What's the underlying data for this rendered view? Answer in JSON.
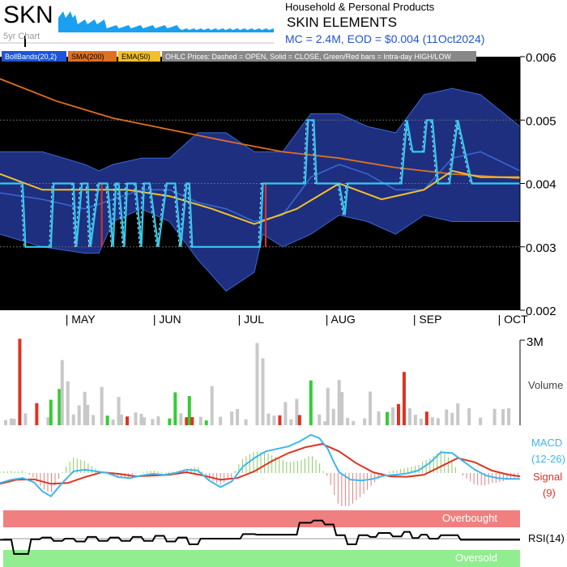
{
  "header": {
    "ticker": "SKN",
    "spark_label": "5yr Chart",
    "sector": "Household & Personal Products",
    "company": "SKIN ELEMENTS",
    "mc_line": "MC = 2.4M, EOD = $0.004 (11Oct2024)"
  },
  "colors": {
    "price_bg": "#000000",
    "band_fill": "#1e2f80",
    "band_line": "#3a66d0",
    "sma": "#e07020",
    "ema": "#f2c02a",
    "close": "#33ccee",
    "volume_up": "#33cc33",
    "volume_down": "#dd3322",
    "volume_flat": "#c8c8c8",
    "macd": "#3fb6ee",
    "signal": "#dd3322",
    "overbought": "#f08080",
    "oversold": "#90ee90"
  },
  "chart_data": [
    {
      "type": "line",
      "legend": [
        "BollBands(20,2)",
        "SMA(200)",
        "EMA(50)",
        "OHLC Prices: Dashed = OPEN, Solid = CLOSE, Green/Red bars = Intra-day HIGH/LOW"
      ],
      "ylim": [
        0.002,
        0.006
      ],
      "yticks": [
        "0.006",
        "0.005",
        "0.004",
        "0.003",
        "0.002"
      ],
      "xticks": [
        "| MAY",
        "| JUN",
        "| JUL",
        "| AUG",
        "| SEP",
        "| OCT"
      ],
      "xtick_days": [
        24,
        55,
        85,
        116,
        147,
        177
      ],
      "x_range_days": [
        0,
        184
      ],
      "series": {
        "close": {
          "x": [
            0,
            8,
            9,
            18,
            19,
            26,
            27,
            29,
            31,
            32,
            35,
            38,
            40,
            41,
            42,
            44,
            45,
            48,
            50,
            51,
            53,
            56,
            59,
            62,
            64,
            66,
            67,
            68,
            70,
            85,
            92,
            93,
            95,
            108,
            109,
            111,
            112,
            120,
            122,
            123,
            126,
            129,
            130,
            131,
            133,
            142,
            144,
            146,
            150,
            151,
            153,
            155,
            159,
            162,
            167,
            184
          ],
          "y": [
            0.004,
            0.004,
            0.003,
            0.003,
            0.004,
            0.004,
            0.003,
            0.004,
            0.004,
            0.003,
            0.004,
            0.004,
            0.003,
            0.004,
            0.004,
            0.003,
            0.004,
            0.004,
            0.003,
            0.004,
            0.004,
            0.003,
            0.004,
            0.004,
            0.003,
            0.004,
            0.004,
            0.003,
            0.003,
            0.003,
            0.003,
            0.004,
            0.004,
            0.004,
            0.005,
            0.005,
            0.004,
            0.004,
            0.0035,
            0.004,
            0.004,
            0.004,
            0.004,
            0.004,
            0.004,
            0.004,
            0.005,
            0.0045,
            0.0045,
            0.005,
            0.005,
            0.004,
            0.004,
            0.005,
            0.004,
            0.004
          ]
        },
        "sma200": {
          "x": [
            0,
            20,
            40,
            60,
            80,
            100,
            120,
            140,
            160,
            184
          ],
          "y": [
            0.00565,
            0.0053,
            0.00503,
            0.00485,
            0.00467,
            0.0045,
            0.0044,
            0.00425,
            0.00415,
            0.00408
          ]
        },
        "ema50": {
          "x": [
            0,
            15,
            30,
            45,
            60,
            75,
            90,
            105,
            120,
            135,
            150,
            160,
            170,
            184
          ],
          "y": [
            0.00415,
            0.0039,
            0.0039,
            0.0039,
            0.0038,
            0.0036,
            0.00336,
            0.0036,
            0.004,
            0.00375,
            0.0039,
            0.0042,
            0.0041,
            0.0041
          ]
        },
        "bb_upper": {
          "x": [
            0,
            15,
            30,
            35,
            40,
            50,
            60,
            70,
            80,
            90,
            100,
            110,
            120,
            130,
            140,
            150,
            160,
            170,
            184
          ],
          "y": [
            0.0045,
            0.0045,
            0.0043,
            0.0042,
            0.0043,
            0.0044,
            0.0044,
            0.0048,
            0.0048,
            0.0045,
            0.0045,
            0.0051,
            0.0051,
            0.0049,
            0.0048,
            0.0054,
            0.0055,
            0.0054,
            0.0049
          ]
        },
        "bb_mid": {
          "x": [
            0,
            15,
            30,
            40,
            50,
            60,
            70,
            80,
            90,
            100,
            110,
            120,
            130,
            140,
            150,
            160,
            170,
            184
          ],
          "y": [
            0.00385,
            0.00375,
            0.0036,
            0.00375,
            0.0039,
            0.0039,
            0.0037,
            0.0036,
            0.0034,
            0.0035,
            0.0041,
            0.0043,
            0.00415,
            0.0039,
            0.0039,
            0.0044,
            0.0045,
            0.0042
          ],
          "style": "mid"
        },
        "bb_lower": {
          "x": [
            0,
            15,
            30,
            35,
            40,
            50,
            60,
            70,
            80,
            90,
            93,
            100,
            110,
            120,
            130,
            140,
            150,
            160,
            170,
            184
          ],
          "y": [
            0.0032,
            0.003,
            0.0029,
            0.0029,
            0.0034,
            0.0036,
            0.0034,
            0.0028,
            0.0023,
            0.0026,
            0.0032,
            0.003,
            0.0032,
            0.0035,
            0.0034,
            0.0032,
            0.0035,
            0.0034,
            0.0034,
            0.0034
          ]
        }
      },
      "red_bars": [
        {
          "x": 36,
          "low": 0.003,
          "high": 0.004
        },
        {
          "x": 94,
          "low": 0.003,
          "high": 0.004
        }
      ]
    },
    {
      "type": "bar",
      "ylabel": "Volume",
      "ylim": [
        0,
        3000000
      ],
      "ytick": "3M",
      "x": [
        2,
        4,
        5,
        7,
        9,
        13,
        17,
        18,
        21,
        22,
        24,
        26,
        28,
        30,
        31,
        33,
        36,
        38,
        40,
        42,
        43,
        45,
        48,
        50,
        51,
        54,
        56,
        60,
        62,
        64,
        66,
        67,
        68,
        71,
        73,
        75,
        78,
        82,
        84,
        87,
        91,
        93,
        95,
        97,
        99,
        101,
        103,
        105,
        106,
        110,
        113,
        115,
        116,
        118,
        120,
        121,
        123,
        125,
        129,
        131,
        134,
        137,
        139,
        141,
        143,
        145,
        147,
        149,
        151,
        153,
        155,
        158,
        160,
        162,
        166,
        170,
        175,
        178,
        180
      ],
      "values": [
        180000,
        240000,
        230000,
        3050000,
        420000,
        780000,
        280000,
        900000,
        1280000,
        2300000,
        1550000,
        380000,
        700000,
        1180000,
        720000,
        360000,
        1350000,
        340000,
        200000,
        1000000,
        380000,
        310000,
        450000,
        400000,
        280000,
        220000,
        320000,
        240000,
        1160000,
        420000,
        280000,
        1030000,
        290000,
        300000,
        170000,
        1380000,
        300000,
        480000,
        570000,
        210000,
        2900000,
        2360000,
        410000,
        340000,
        350000,
        820000,
        210000,
        930000,
        360000,
        1580000,
        380000,
        140000,
        1320000,
        580000,
        1600000,
        1170000,
        260000,
        150000,
        240000,
        1190000,
        490000,
        470000,
        630000,
        750000,
        1880000,
        600000,
        370000,
        230000,
        480000,
        280000,
        250000,
        560000,
        440000,
        770000,
        600000,
        270000,
        580000,
        570000,
        600000
      ],
      "colors": [
        "flat",
        "flat",
        "flat",
        "down",
        "flat",
        "down",
        "flat",
        "up",
        "up",
        "flat",
        "flat",
        "flat",
        "flat",
        "flat",
        "flat",
        "flat",
        "flat",
        "up",
        "flat",
        "flat",
        "flat",
        "down",
        "flat",
        "flat",
        "flat",
        "flat",
        "flat",
        "up",
        "up",
        "flat",
        "down",
        "up",
        "down",
        "flat",
        "up",
        "flat",
        "flat",
        "flat",
        "flat",
        "flat",
        "flat",
        "flat",
        "flat",
        "flat",
        "down",
        "flat",
        "flat",
        "flat",
        "down",
        "up",
        "flat",
        "flat",
        "flat",
        "flat",
        "flat",
        "flat",
        "flat",
        "flat",
        "flat",
        "flat",
        "flat",
        "up",
        "flat",
        "down",
        "down",
        "flat",
        "flat",
        "flat",
        "down",
        "flat",
        "flat",
        "flat",
        "flat",
        "flat",
        "flat",
        "flat",
        "flat",
        "flat",
        "flat"
      ]
    },
    {
      "type": "line",
      "labels": [
        "MACD",
        "(12-26)",
        "Signal",
        "(9)"
      ],
      "x_range_days": [
        0,
        184
      ],
      "series": {
        "macd": {
          "x": [
            0,
            4,
            8,
            12,
            15,
            18,
            22,
            26,
            30,
            34,
            38,
            42,
            46,
            50,
            54,
            58,
            62,
            66,
            70,
            74,
            78,
            82,
            86,
            90,
            94,
            98,
            102,
            106,
            110,
            113,
            116,
            118,
            120,
            124,
            128,
            132,
            136,
            140,
            144,
            148,
            152,
            156,
            160,
            164,
            168,
            172,
            176,
            180,
            184
          ],
          "y": [
            -2.4,
            -1.6,
            -1.2,
            -2.2,
            -4.4,
            -5.6,
            -2.4,
            0.4,
            0.8,
            0.4,
            0.0,
            -1.0,
            -1.2,
            -0.6,
            -0.2,
            -0.4,
            0.0,
            0.8,
            0.6,
            -1.8,
            -3.4,
            -2.0,
            1.6,
            3.6,
            5.2,
            5.8,
            6.4,
            7.6,
            9.2,
            8.4,
            5.8,
            2.8,
            0.2,
            -1.6,
            -1.8,
            -1.4,
            -0.6,
            -0.4,
            -0.1,
            0.6,
            2.4,
            5.0,
            4.8,
            2.8,
            0.8,
            -0.6,
            -1.2,
            -1.4,
            -1.4
          ]
        },
        "signal": {
          "x": [
            0,
            6,
            12,
            18,
            24,
            30,
            36,
            42,
            48,
            54,
            60,
            66,
            72,
            78,
            84,
            90,
            96,
            102,
            108,
            114,
            120,
            126,
            132,
            138,
            144,
            150,
            156,
            162,
            168,
            174,
            180,
            184
          ],
          "y": [
            -2.6,
            -1.6,
            -1.5,
            -2.6,
            -2.4,
            -1.0,
            0.2,
            -0.2,
            -0.8,
            -0.6,
            -0.4,
            0.2,
            -0.6,
            -1.6,
            -1.2,
            0.4,
            2.8,
            4.8,
            6.2,
            7.0,
            5.2,
            2.4,
            0.2,
            -0.8,
            -0.9,
            -0.4,
            1.6,
            3.6,
            2.6,
            0.6,
            -0.4,
            -0.8
          ]
        }
      },
      "ylim": [
        -7,
        10
      ]
    },
    {
      "type": "line",
      "labels": [
        "RSI(14)",
        "Overbought",
        "Oversold"
      ],
      "ylim": [
        0,
        100
      ],
      "overbought": 70,
      "oversold": 30,
      "x_range_days": [
        0,
        184
      ],
      "series": {
        "rsi": {
          "x": [
            0,
            4,
            5,
            10,
            11,
            14,
            15,
            18,
            19,
            22,
            23,
            26,
            27,
            30,
            31,
            34,
            35,
            38,
            39,
            42,
            43,
            46,
            47,
            50,
            51,
            54,
            55,
            58,
            59,
            62,
            63,
            66,
            67,
            70,
            71,
            85,
            86,
            90,
            91,
            105,
            106,
            110,
            111,
            114,
            115,
            118,
            119,
            122,
            123,
            126,
            127,
            130,
            131,
            133,
            134,
            138,
            139,
            142,
            143,
            145,
            146,
            148,
            149,
            151,
            152,
            155,
            156,
            162,
            163,
            184
          ],
          "y": [
            48,
            48,
            23,
            23,
            49,
            49,
            52,
            52,
            46,
            46,
            50,
            50,
            45,
            45,
            53,
            53,
            46,
            46,
            52,
            52,
            46,
            46,
            53,
            53,
            46,
            46,
            55,
            55,
            45,
            45,
            52,
            52,
            40,
            40,
            50,
            50,
            58,
            58,
            57,
            57,
            78,
            78,
            82,
            82,
            75,
            75,
            56,
            56,
            40,
            40,
            56,
            56,
            53,
            53,
            60,
            60,
            54,
            54,
            62,
            62,
            51,
            51,
            57,
            57,
            50,
            50,
            56,
            56,
            48,
            48
          ]
        }
      }
    }
  ]
}
